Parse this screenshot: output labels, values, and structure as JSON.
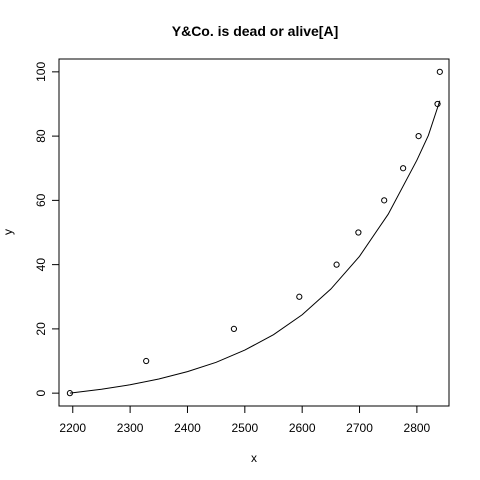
{
  "chart_data": {
    "type": "scatter",
    "title": "Y&Co. is dead or alive[A]",
    "xlabel": "x",
    "ylabel": "y",
    "xlim": [
      2176,
      2856
    ],
    "ylim": [
      -4,
      104
    ],
    "x_ticks": [
      2200,
      2300,
      2400,
      2500,
      2600,
      2700,
      2800
    ],
    "y_ticks": [
      0,
      20,
      40,
      60,
      80,
      100
    ],
    "grid": false,
    "legend": "none",
    "colors": {
      "points": "#000000",
      "line": "#000000",
      "frame": "#000000"
    },
    "series": [
      {
        "type": "scatter",
        "marker": "open-circle",
        "x": [
          2195,
          2328,
          2481,
          2595,
          2660,
          2698,
          2743,
          2776,
          2803,
          2836,
          2840
        ],
        "y": [
          0,
          10,
          20,
          30,
          40,
          50,
          60,
          70,
          80,
          90,
          100
        ]
      },
      {
        "type": "line",
        "x": [
          2195,
          2250,
          2300,
          2350,
          2400,
          2450,
          2500,
          2550,
          2600,
          2650,
          2700,
          2750,
          2800,
          2820,
          2840
        ],
        "y": [
          0,
          1.2,
          2.6,
          4.4,
          6.7,
          9.6,
          13.4,
          18.2,
          24.4,
          32.4,
          42.6,
          55.7,
          72.5,
          80.2,
          91
        ]
      }
    ]
  }
}
